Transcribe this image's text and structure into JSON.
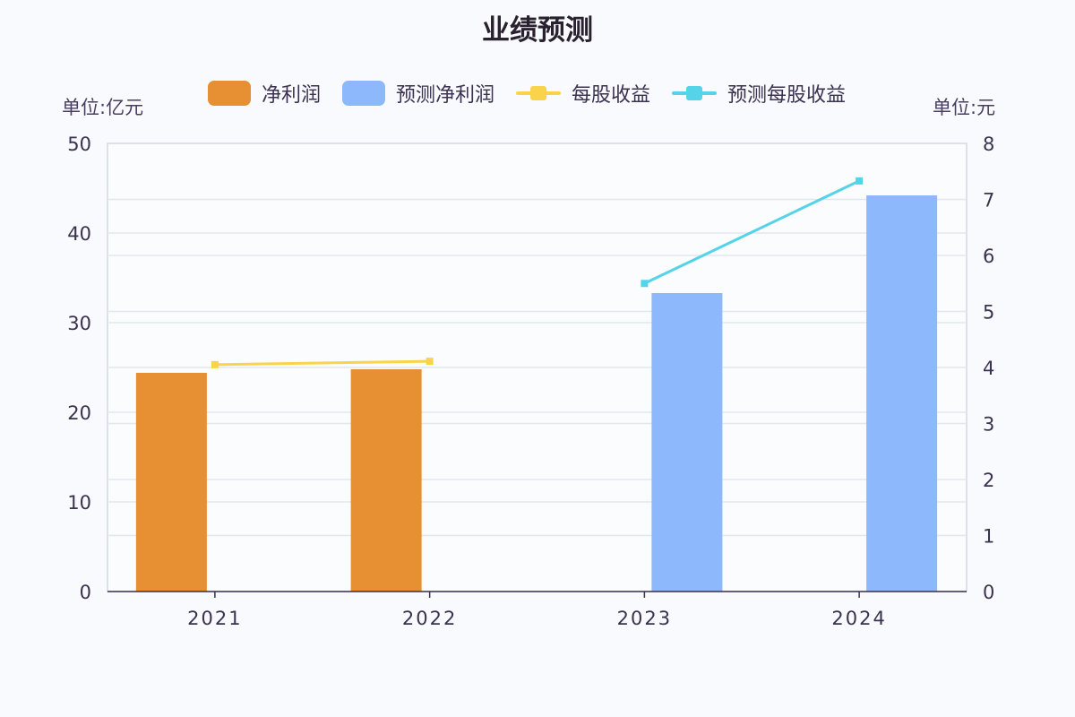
{
  "chart_data": {
    "type": "bar+line",
    "title": "业绩预测",
    "categories": [
      "2021",
      "2022",
      "2023",
      "2024"
    ],
    "series": [
      {
        "name": "净利润",
        "type": "bar",
        "axis": "left",
        "color": "#e68f33",
        "values": [
          24.4,
          24.8,
          null,
          null
        ]
      },
      {
        "name": "预测净利润",
        "type": "bar",
        "axis": "left",
        "color": "#8db8fb",
        "values": [
          null,
          null,
          33.3,
          44.2
        ]
      },
      {
        "name": "每股收益",
        "type": "line",
        "axis": "right",
        "color": "#f9d44a",
        "values": [
          4.05,
          4.11,
          null,
          null
        ]
      },
      {
        "name": "预测每股收益",
        "type": "line",
        "axis": "right",
        "color": "#55d3e8",
        "values": [
          null,
          null,
          5.5,
          7.33
        ]
      }
    ],
    "y_left": {
      "label": "单位:亿元",
      "ylim": [
        0,
        50
      ],
      "ticks": [
        "0",
        "10",
        "20",
        "30",
        "40",
        "50"
      ]
    },
    "y_right": {
      "label": "单位:元",
      "ylim": [
        0,
        8
      ],
      "ticks": [
        "0",
        "1",
        "2",
        "3",
        "4",
        "5",
        "6",
        "7",
        "8"
      ]
    },
    "grid": true,
    "legend_position": "top"
  },
  "legend": [
    {
      "label": "净利润",
      "kind": "box",
      "color": "#e68f33"
    },
    {
      "label": "预测净利润",
      "kind": "box",
      "color": "#8db8fb"
    },
    {
      "label": "每股收益",
      "kind": "line",
      "color": "#f9d44a"
    },
    {
      "label": "预测每股收益",
      "kind": "line",
      "color": "#55d3e8"
    }
  ],
  "units": {
    "left": "单位:亿元",
    "right": "单位:元"
  }
}
